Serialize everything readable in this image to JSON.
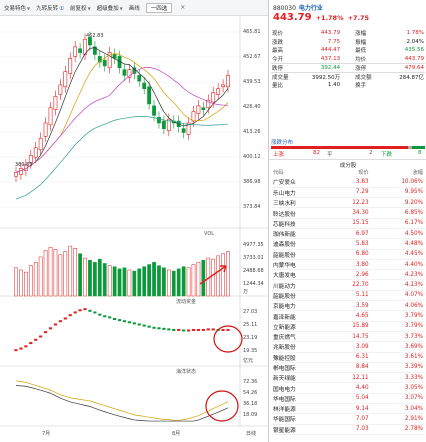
{
  "toolbar": {
    "items": [
      "交易特色",
      "九转反转",
      "前复权",
      "超级叠加",
      "画线"
    ],
    "badge": "①",
    "period_button": "一四选",
    "close": "×"
  },
  "chart": {
    "price_axis": [
      "465.81",
      "452.67",
      "439.53",
      "426.40",
      "413.26",
      "400.12",
      "386.98",
      "373.84"
    ],
    "high_label": "462.83",
    "low_label": "389.83",
    "vol_label": "VOL",
    "vol_axis": [
      "4977.35",
      "3733.01",
      "2488.68",
      "1244.34"
    ],
    "vol_unit": "万",
    "flow_label": "流动资金",
    "flow_axis": [
      "27.03",
      "25.11",
      "23.19",
      "19.35"
    ],
    "flow_unit": "亿元",
    "sent_label": "海洋状态",
    "sent_axis": [
      "72.36",
      "54.26",
      "36.18",
      "18.09"
    ],
    "month_labels": [
      "7月",
      "8月"
    ],
    "bottom_right": "日线"
  },
  "colors": {
    "up": "#e02020",
    "down": "#0a9a3a",
    "accent": "#1a5fb4"
  },
  "panel": {
    "code": "880030",
    "name": "电力行业",
    "price": "443.79",
    "change_pct": "+1.78%",
    "change": "+7.75",
    "quote": [
      {
        "l1": "现价",
        "v1": "443.79",
        "c1": "red",
        "l2": "涨幅",
        "v2": "1.78%",
        "c2": "red"
      },
      {
        "l1": "涨跌",
        "v1": "7.75",
        "c1": "red",
        "l2": "振幅",
        "v2": "2.04%",
        "c2": "blk"
      },
      {
        "l1": "最高",
        "v1": "444.47",
        "c1": "red",
        "l2": "最低",
        "v2": "435.56",
        "c2": "green"
      },
      {
        "l1": "今开",
        "v1": "437.13",
        "c1": "red",
        "l2": "均价",
        "v2": "443.79",
        "c2": "red"
      },
      {
        "l1": "跌停",
        "v1": "392.44",
        "c1": "green",
        "l2": "涨停",
        "v2": "479.64",
        "c2": "red"
      },
      {
        "l1": "成交量",
        "v1": "3992.50万",
        "c1": "blk",
        "l2": "成交额",
        "v2": "284.87亿",
        "c2": "blk"
      },
      {
        "l1": "量比",
        "v1": "1.40",
        "c1": "blk",
        "l2": "换手",
        "v2": "",
        "c2": "blk"
      }
    ],
    "tab": "涨跌分布",
    "up_label": "上涨",
    "up_count": "82",
    "flat_label": "平",
    "flat_count": "2",
    "down_label": "下跌",
    "down_count": "8",
    "up_share": 0.891,
    "flat_share": 0.022,
    "down_share": 0.087,
    "list_title": "成分股",
    "columns": [
      "代码",
      "现价",
      "涨幅"
    ],
    "stocks": [
      {
        "name": "广安爱众",
        "price": "3.83",
        "chg": "10.06%"
      },
      {
        "name": "乐山电力",
        "price": "7.29",
        "chg": "9.95%"
      },
      {
        "name": "三峡水利",
        "price": "12.23",
        "chg": "9.20%"
      },
      {
        "name": "聆达股份",
        "price": "34.30",
        "chg": "6.85%"
      },
      {
        "name": "芯能科技",
        "price": "15.15",
        "chg": "6.17%"
      },
      {
        "name": "珈伟新能",
        "price": "6.97",
        "chg": "4.50%"
      },
      {
        "name": "迪森股份",
        "price": "5.83",
        "chg": "4.48%"
      },
      {
        "name": "韶能股份",
        "price": "6.80",
        "chg": "4.45%"
      },
      {
        "name": "内蒙华电",
        "price": "3.80",
        "chg": "4.40%"
      },
      {
        "name": "大唐发电",
        "price": "2.96",
        "chg": "4.23%"
      },
      {
        "name": "川能动力",
        "price": "22.70",
        "chg": "4.13%"
      },
      {
        "name": "韶能股份",
        "price": "5.11",
        "chg": "4.07%"
      },
      {
        "name": "京能电力",
        "price": "3.59",
        "chg": "4.06%"
      },
      {
        "name": "嘉泽新能",
        "price": "4.65",
        "chg": "3.79%"
      },
      {
        "name": "立新能源",
        "price": "15.89",
        "chg": "3.79%"
      },
      {
        "name": "重庆燃气",
        "price": "14.75",
        "chg": "3.73%"
      },
      {
        "name": "兆新股份",
        "price": "3.09",
        "chg": "3.69%"
      },
      {
        "name": "豫能控股",
        "price": "6.31",
        "chg": "3.61%"
      },
      {
        "name": "郴电国际",
        "price": "8.84",
        "chg": "3.39%"
      },
      {
        "name": "新天绿能",
        "price": "12.11",
        "chg": "3.33%"
      },
      {
        "name": "国电电力",
        "price": "4.40",
        "chg": "3.05%"
      },
      {
        "name": "华电国际",
        "price": "5.04",
        "chg": "3.07%"
      },
      {
        "name": "林洋能源",
        "price": "9.14",
        "chg": "3.04%"
      },
      {
        "name": "华能国际",
        "price": "7.07",
        "chg": "2.91%"
      },
      {
        "name": "银星能源",
        "price": "7.03",
        "chg": "2.78%"
      }
    ]
  }
}
